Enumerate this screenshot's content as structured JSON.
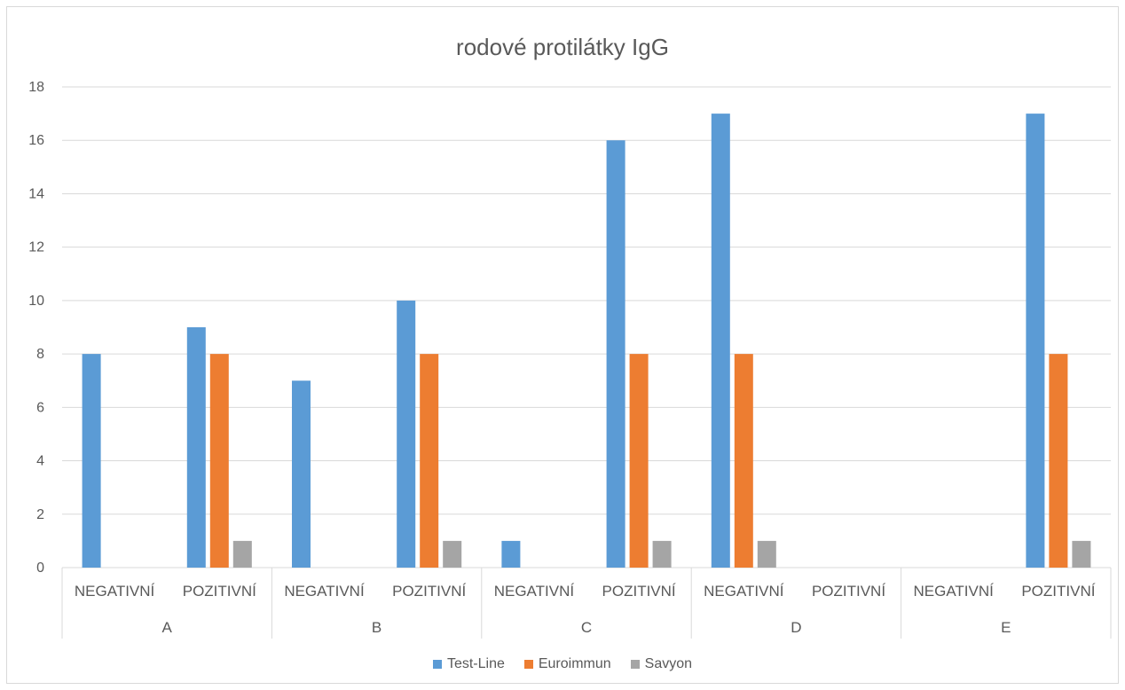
{
  "chart_data": {
    "type": "bar",
    "title": "rodové protilátky IgG",
    "xlabel": "",
    "ylabel": "",
    "ylim": [
      0,
      18
    ],
    "yticks": [
      0,
      2,
      4,
      6,
      8,
      10,
      12,
      14,
      16,
      18
    ],
    "grid": true,
    "legend_position": "bottom",
    "groups": [
      "A",
      "B",
      "C",
      "D",
      "E"
    ],
    "subcategories": [
      "NEGATIVNÍ",
      "POZITIVNÍ"
    ],
    "categories": [
      "A NEGATIVNÍ",
      "A POZITIVNÍ",
      "B NEGATIVNÍ",
      "B POZITIVNÍ",
      "C NEGATIVNÍ",
      "C POZITIVNÍ",
      "D NEGATIVNÍ",
      "D POZITIVNÍ",
      "E NEGATIVNÍ",
      "E POZITIVNÍ"
    ],
    "series": [
      {
        "name": "Test-Line",
        "color": "#5b9bd5",
        "values": [
          8,
          9,
          7,
          10,
          1,
          16,
          17,
          0,
          0,
          17
        ]
      },
      {
        "name": "Euroimmun",
        "color": "#ed7d31",
        "values": [
          0,
          8,
          0,
          8,
          0,
          8,
          8,
          0,
          0,
          8
        ]
      },
      {
        "name": "Savyon",
        "color": "#a5a5a5",
        "values": [
          0,
          1,
          0,
          1,
          0,
          1,
          1,
          0,
          0,
          1
        ]
      }
    ]
  }
}
